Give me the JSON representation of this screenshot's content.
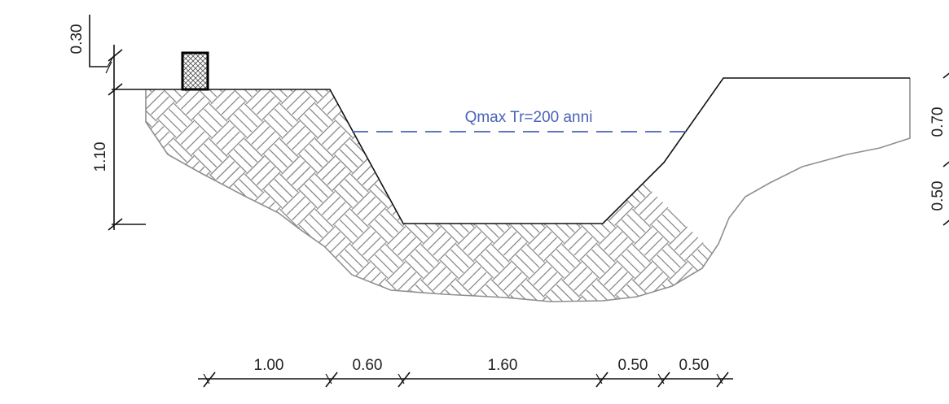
{
  "water_level_label": "Qmax Tr=200 anni",
  "horizontal_dimensions": [
    "1.00",
    "0.60",
    "1.60",
    "0.50",
    "0.50"
  ],
  "left_vertical_dimensions": {
    "top": "0.30",
    "main": "1.10"
  },
  "right_vertical_dimensions": {
    "upper": "0.70",
    "lower": "0.50"
  },
  "colors": {
    "water_line": "#4a63b8",
    "section_outline": "#111111",
    "hatch": "#888888"
  }
}
